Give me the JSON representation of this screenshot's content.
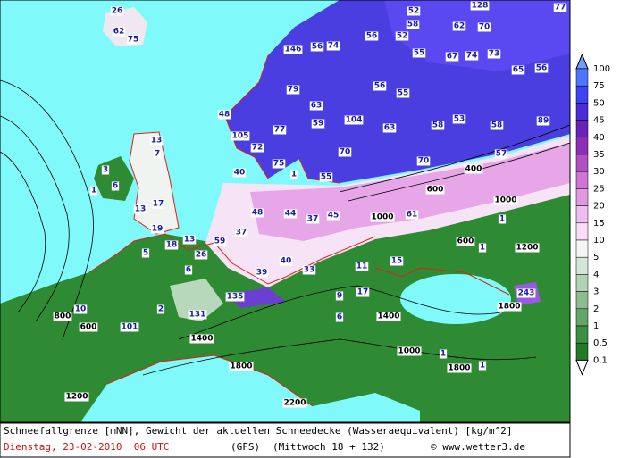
{
  "map": {
    "labels": [
      26,
      62,
      75,
      128,
      77,
      52,
      58,
      52,
      62,
      70,
      146,
      56,
      74,
      56,
      55,
      67,
      74,
      73,
      65,
      56,
      79,
      56,
      55,
      48,
      63,
      59,
      104,
      63,
      58,
      53,
      58,
      89,
      77,
      105,
      72,
      75,
      70,
      70,
      57,
      55,
      40,
      1,
      600,
      400,
      1000,
      61,
      1000,
      1,
      3,
      13,
      7,
      6,
      13,
      17,
      19,
      13,
      26,
      59,
      37,
      48,
      44,
      37,
      45,
      18,
      5,
      40,
      39,
      33,
      11,
      15,
      6,
      17,
      9,
      135,
      243,
      10,
      2,
      131,
      101,
      6,
      800,
      600,
      1200,
      1,
      1,
      1,
      1,
      1000,
      1800,
      1400,
      1400,
      2200,
      1800,
      1800,
      1200,
      600
    ],
    "sea_color": "#7ff9f9",
    "land_color": "#2e8b33",
    "coast_color": "#e0201a"
  },
  "legend": {
    "levels": [
      100,
      75,
      50,
      45,
      40,
      35,
      30,
      25,
      20,
      15,
      10,
      5,
      4,
      3,
      2,
      1,
      0.5,
      0.1
    ],
    "colors": [
      "#6f9cff",
      "#4f74ff",
      "#3a44f0",
      "#4a2cd8",
      "#6a22b8",
      "#8c2fb4",
      "#b24fc4",
      "#cf73d4",
      "#e198e2",
      "#efbdef",
      "#f9dcf9",
      "#f5f5f5",
      "#d4e6d8",
      "#b2d2b6",
      "#8cbc92",
      "#62a66a",
      "#3d8f43",
      "#217a27",
      "#ffffff"
    ]
  },
  "footer": {
    "description": "Schneefallgrenze [mNN], Gewicht der aktuellen Schneedecke (Wasseraequivalent) [kg/m^2]",
    "date": "Dienstag, 23-02-2010  06 UTC",
    "model": "(GFS)",
    "forecast": "(Mittwoch 18 + 132)",
    "copyright": "© www.wetter3.de"
  }
}
